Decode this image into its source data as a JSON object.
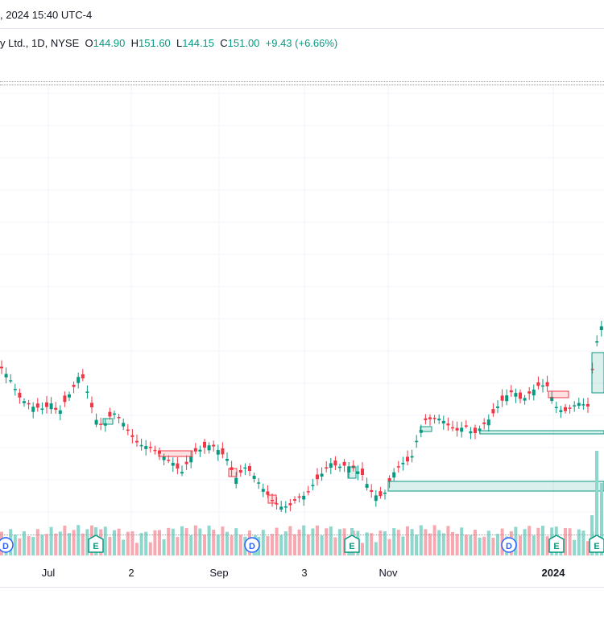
{
  "header": {
    "datetime": ", 2024 15:40 UTC-4"
  },
  "legend": {
    "symbol": "y Ltd., 1D, NYSE",
    "o_label": "O",
    "o_value": "144.90",
    "h_label": "H",
    "h_value": "151.60",
    "l_label": "L",
    "l_value": "144.15",
    "c_label": "C",
    "c_value": "151.00",
    "change": "+9.43 (+6.66%)"
  },
  "x_axis": {
    "labels": [
      "Jul",
      "2",
      "Sep",
      "3",
      "Nov",
      "2024"
    ]
  },
  "events": [
    {
      "type": "D"
    },
    {
      "type": "E"
    },
    {
      "type": "D"
    },
    {
      "type": "E"
    },
    {
      "type": "D"
    },
    {
      "type": "E"
    },
    {
      "type": "E"
    }
  ],
  "colors": {
    "up": "#089981",
    "down": "#f23645",
    "up_zone": "#089981",
    "down_zone": "#f23645",
    "dividend": "#2962ff",
    "earnings": "#089981"
  }
}
